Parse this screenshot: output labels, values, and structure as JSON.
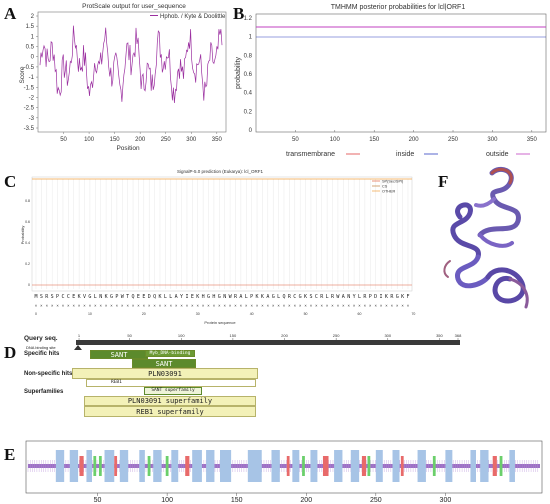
{
  "panel_labels": {
    "a": "A",
    "b": "B",
    "c": "C",
    "d": "D",
    "e": "E",
    "f": "F"
  },
  "protscale": {
    "title": "ProtScale output for user_sequence",
    "legend": "Hphob. / Kyte & Doolittle",
    "xlabel": "Position",
    "ylabel": "Score",
    "xticks": [
      "50",
      "100",
      "150",
      "200",
      "250",
      "300",
      "350"
    ],
    "yticks": [
      "2",
      "1.5",
      "1",
      "0.5",
      "0",
      "-0.5",
      "-1",
      "-1.5",
      "-2",
      "-2.5",
      "-3",
      "-3.5"
    ]
  },
  "tmhmm": {
    "title": "TMHMM posterior probabilities for lcl|ORF1",
    "ylabel": "probability",
    "yticks": [
      "1.2",
      "1",
      "0.8",
      "0.6",
      "0.4",
      "0.2",
      "0"
    ],
    "xticks": [
      "50",
      "100",
      "150",
      "200",
      "250",
      "300",
      "350"
    ],
    "legend": [
      "transmembrane",
      "inside",
      "outside"
    ],
    "colors": {
      "transmembrane": "#e04040",
      "inside": "#3040c0",
      "outside": "#c040c0"
    }
  },
  "signalp": {
    "title": "SignalP-5.0 prediction (Eukarya): lcl_ORF1",
    "ylabel": "Probability",
    "xlabel": "Protein sequence",
    "legend": [
      "SP(Sec/SPI)",
      "CS",
      "OTHER"
    ],
    "sequence": "MSRSPCCEKVGLNKGPWTQEEDQKLLAYIEKHGHGNWRALPKKAGLQRCGKSCRLRWANYLRPDIKRGKF",
    "xticks": [
      "0",
      "10",
      "20",
      "30",
      "40",
      "50",
      "60",
      "70"
    ],
    "yticks": [
      "0.8",
      "0.6",
      "0.4",
      "0.2",
      "0"
    ]
  },
  "cdd": {
    "query_label": "Query seq.",
    "ticks": [
      "1",
      "50",
      "100",
      "150",
      "200",
      "250",
      "300",
      "350",
      "368"
    ],
    "row_labels": [
      "Specific hits",
      "Non-specific hits",
      "Superfamilies"
    ],
    "dna_site_label": "DNA binding site",
    "hits": {
      "sant1": "SANT",
      "myb": "Myb_DNA-binding",
      "sant2": "SANT",
      "pln": "PLN03091",
      "reb1_small": "REB1",
      "sant_sf": "SANT superfamily",
      "pln_sf": "PLN03091 superfamily",
      "reb1_sf": "REB1 superfamily"
    }
  },
  "sopma": {
    "xticks": [
      "50",
      "100",
      "150",
      "200",
      "250",
      "300"
    ]
  }
}
